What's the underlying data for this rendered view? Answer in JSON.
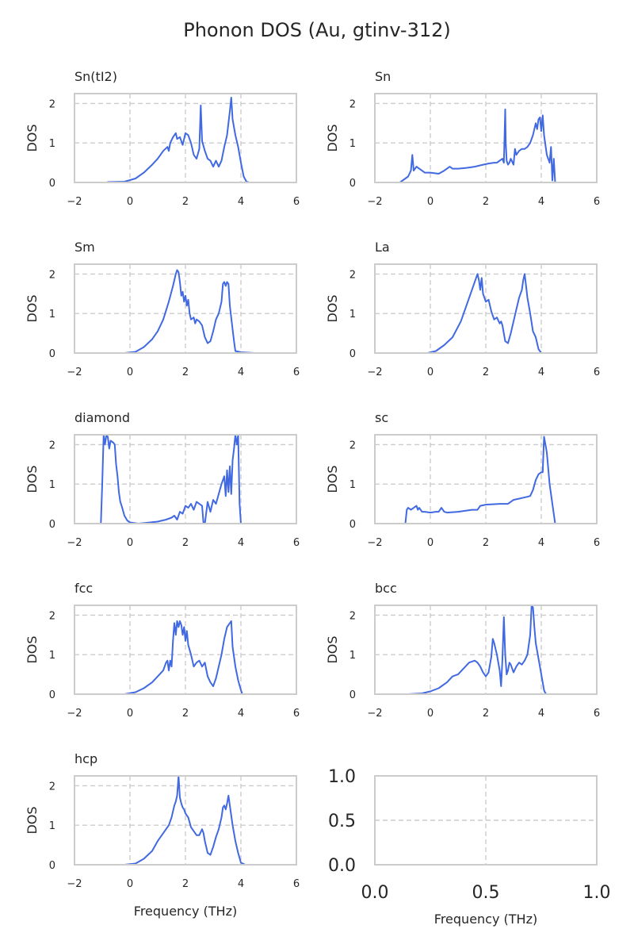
{
  "title": "Phonon DOS (Au, gtinv-312)",
  "colors": {
    "line": "#4169e1",
    "grid": "#cccccc",
    "text": "#262626"
  },
  "chart_data": [
    {
      "type": "line",
      "title": "Sn(tI2)",
      "xlabel": "",
      "ylabel": "DOS",
      "xlim": [
        -2,
        6
      ],
      "ylim": [
        0,
        2.25
      ],
      "xticks": [
        "−2",
        "0",
        "2",
        "4",
        "6"
      ],
      "yticks": [
        "0",
        "1",
        "2"
      ],
      "grid": true,
      "series": [
        {
          "x": [
            -0.8,
            -0.2,
            0.2,
            0.5,
            0.8,
            1.0,
            1.2,
            1.35,
            1.4,
            1.45,
            1.55,
            1.65,
            1.7,
            1.8,
            1.9,
            2.0,
            2.1,
            2.2,
            2.3,
            2.4,
            2.5,
            2.55,
            2.6,
            2.7,
            2.8,
            2.9,
            3.0,
            3.1,
            3.2,
            3.3,
            3.4,
            3.5,
            3.6,
            3.65,
            3.7,
            3.8,
            3.9,
            4.0,
            4.1,
            4.2,
            4.3,
            4.6
          ],
          "y": [
            0.01,
            0.02,
            0.1,
            0.25,
            0.45,
            0.6,
            0.8,
            0.9,
            0.8,
            1.0,
            1.15,
            1.25,
            1.1,
            1.15,
            0.95,
            1.25,
            1.2,
            1.0,
            0.7,
            0.6,
            0.85,
            1.95,
            1.05,
            0.8,
            0.6,
            0.55,
            0.4,
            0.55,
            0.4,
            0.55,
            0.9,
            1.2,
            1.8,
            2.15,
            1.6,
            1.2,
            0.9,
            0.5,
            0.15,
            0.02,
            0.0,
            0.0
          ]
        }
      ]
    },
    {
      "type": "line",
      "title": "Sn",
      "xlabel": "",
      "ylabel": "DOS",
      "xlim": [
        -2,
        6
      ],
      "ylim": [
        0,
        2.25
      ],
      "xticks": [
        "−2",
        "0",
        "2",
        "4",
        "6"
      ],
      "yticks": [
        "0",
        "1",
        "2"
      ],
      "grid": true,
      "series": [
        {
          "x": [
            -1.7,
            -1.1,
            -1.0,
            -0.9,
            -0.8,
            -0.7,
            -0.65,
            -0.6,
            -0.5,
            -0.4,
            -0.3,
            -0.2,
            0.0,
            0.3,
            0.5,
            0.6,
            0.7,
            0.8,
            1.0,
            1.3,
            1.6,
            1.9,
            2.1,
            2.3,
            2.4,
            2.5,
            2.6,
            2.65,
            2.7,
            2.72,
            2.75,
            2.8,
            2.85,
            2.9,
            3.0,
            3.05,
            3.1,
            3.2,
            3.3,
            3.4,
            3.5,
            3.6,
            3.7,
            3.8,
            3.85,
            3.9,
            3.95,
            4.0,
            4.05,
            4.1,
            4.2,
            4.3,
            4.35,
            4.4,
            4.45,
            4.5,
            5.1
          ],
          "y": [
            0.0,
            0.0,
            0.05,
            0.1,
            0.15,
            0.3,
            0.7,
            0.3,
            0.4,
            0.35,
            0.3,
            0.25,
            0.25,
            0.22,
            0.3,
            0.35,
            0.4,
            0.35,
            0.35,
            0.37,
            0.4,
            0.45,
            0.48,
            0.5,
            0.5,
            0.55,
            0.6,
            0.5,
            1.85,
            1.0,
            0.55,
            0.45,
            0.5,
            0.6,
            0.45,
            0.85,
            0.7,
            0.8,
            0.85,
            0.85,
            0.9,
            1.0,
            1.2,
            1.5,
            1.35,
            1.6,
            1.65,
            1.3,
            1.7,
            1.2,
            0.7,
            0.5,
            0.9,
            0.05,
            0.6,
            0.0,
            0.0
          ]
        }
      ]
    },
    {
      "type": "line",
      "title": "Sm",
      "xlabel": "",
      "ylabel": "DOS",
      "xlim": [
        -2,
        6
      ],
      "ylim": [
        0,
        2.25
      ],
      "xticks": [
        "−2",
        "0",
        "2",
        "4",
        "6"
      ],
      "yticks": [
        "0",
        "1",
        "2"
      ],
      "grid": true,
      "series": [
        {
          "x": [
            -0.2,
            0.2,
            0.5,
            0.8,
            1.0,
            1.2,
            1.4,
            1.55,
            1.65,
            1.7,
            1.75,
            1.8,
            1.85,
            1.9,
            1.95,
            2.0,
            2.05,
            2.1,
            2.15,
            2.2,
            2.3,
            2.35,
            2.4,
            2.5,
            2.6,
            2.7,
            2.8,
            2.9,
            3.0,
            3.1,
            3.2,
            3.3,
            3.35,
            3.4,
            3.45,
            3.5,
            3.55,
            3.6,
            3.7,
            3.75,
            3.8,
            4.0,
            4.5
          ],
          "y": [
            0.0,
            0.03,
            0.15,
            0.35,
            0.55,
            0.85,
            1.3,
            1.7,
            2.0,
            2.1,
            2.05,
            1.8,
            1.45,
            1.55,
            1.3,
            1.45,
            1.2,
            1.35,
            1.0,
            0.85,
            0.9,
            0.75,
            0.85,
            0.8,
            0.7,
            0.4,
            0.25,
            0.3,
            0.55,
            0.85,
            1.0,
            1.3,
            1.75,
            1.8,
            1.7,
            1.8,
            1.75,
            1.2,
            0.6,
            0.3,
            0.05,
            0.02,
            0.0
          ]
        }
      ]
    },
    {
      "type": "line",
      "title": "La",
      "xlabel": "",
      "ylabel": "DOS",
      "xlim": [
        -2,
        6
      ],
      "ylim": [
        0,
        2.25
      ],
      "xticks": [
        "−2",
        "0",
        "2",
        "4",
        "6"
      ],
      "yticks": [
        "0",
        "1",
        "2"
      ],
      "grid": true,
      "series": [
        {
          "x": [
            -0.1,
            0.2,
            0.5,
            0.8,
            1.1,
            1.3,
            1.5,
            1.6,
            1.7,
            1.75,
            1.8,
            1.85,
            1.9,
            1.95,
            2.0,
            2.1,
            2.2,
            2.3,
            2.4,
            2.5,
            2.55,
            2.6,
            2.7,
            2.8,
            2.9,
            3.0,
            3.1,
            3.2,
            3.3,
            3.35,
            3.4,
            3.45,
            3.5,
            3.55,
            3.6,
            3.7,
            3.8,
            3.9,
            4.0,
            4.1
          ],
          "y": [
            0.0,
            0.05,
            0.2,
            0.4,
            0.8,
            1.2,
            1.6,
            1.8,
            2.0,
            1.85,
            1.6,
            1.9,
            1.5,
            1.4,
            1.3,
            1.35,
            1.05,
            0.85,
            0.9,
            0.75,
            0.8,
            0.7,
            0.3,
            0.25,
            0.5,
            0.8,
            1.1,
            1.4,
            1.6,
            1.85,
            2.0,
            1.7,
            1.4,
            1.2,
            1.0,
            0.55,
            0.4,
            0.1,
            0.0,
            0.0
          ]
        }
      ]
    },
    {
      "type": "line",
      "title": "diamond",
      "xlabel": "",
      "ylabel": "DOS",
      "xlim": [
        -2,
        6
      ],
      "ylim": [
        0,
        2.25
      ],
      "xticks": [
        "−2",
        "0",
        "2",
        "4",
        "6"
      ],
      "yticks": [
        "0",
        "1",
        "2"
      ],
      "grid": true,
      "series": [
        {
          "x": [
            -1.5,
            -1.05,
            -1.0,
            -0.95,
            -0.9,
            -0.85,
            -0.8,
            -0.75,
            -0.7,
            -0.6,
            -0.55,
            -0.5,
            -0.45,
            -0.4,
            -0.35,
            -0.3,
            -0.2,
            -0.1,
            0.0,
            0.3,
            0.6,
            1.0,
            1.3,
            1.5,
            1.6,
            1.7,
            1.8,
            1.9,
            2.0,
            2.1,
            2.2,
            2.3,
            2.4,
            2.5,
            2.6,
            2.65,
            2.7,
            2.8,
            2.9,
            3.0,
            3.1,
            3.2,
            3.3,
            3.4,
            3.45,
            3.5,
            3.55,
            3.6,
            3.65,
            3.7,
            3.75,
            3.8,
            3.85,
            3.9,
            3.95,
            4.0,
            4.5
          ],
          "y": [
            0.0,
            0.0,
            1.0,
            2.25,
            2.0,
            2.25,
            2.2,
            1.9,
            2.1,
            2.05,
            2.0,
            1.5,
            1.2,
            0.8,
            0.55,
            0.45,
            0.2,
            0.08,
            0.03,
            0.0,
            0.02,
            0.05,
            0.1,
            0.15,
            0.2,
            0.1,
            0.3,
            0.25,
            0.45,
            0.4,
            0.5,
            0.35,
            0.55,
            0.5,
            0.45,
            0.0,
            0.0,
            0.55,
            0.3,
            0.6,
            0.5,
            0.75,
            1.0,
            1.2,
            0.7,
            1.35,
            0.8,
            1.45,
            0.75,
            1.6,
            1.9,
            2.25,
            2.0,
            2.25,
            0.5,
            0.0,
            0.0
          ]
        }
      ]
    },
    {
      "type": "line",
      "title": "sc",
      "xlabel": "",
      "ylabel": "DOS",
      "xlim": [
        -2,
        6
      ],
      "ylim": [
        0,
        2.25
      ],
      "xticks": [
        "−2",
        "0",
        "2",
        "4",
        "6"
      ],
      "yticks": [
        "0",
        "1",
        "2"
      ],
      "grid": true,
      "series": [
        {
          "x": [
            -1.5,
            -0.9,
            -0.85,
            -0.8,
            -0.7,
            -0.6,
            -0.5,
            -0.45,
            -0.4,
            -0.3,
            -0.2,
            0.0,
            0.2,
            0.3,
            0.4,
            0.5,
            0.6,
            1.0,
            1.5,
            1.7,
            1.8,
            2.0,
            2.5,
            2.8,
            3.0,
            3.5,
            3.6,
            3.7,
            3.8,
            3.9,
            4.0,
            4.05,
            4.1,
            4.15,
            4.2,
            4.3,
            4.5,
            4.95
          ],
          "y": [
            0.0,
            0.0,
            0.35,
            0.4,
            0.35,
            0.4,
            0.45,
            0.35,
            0.4,
            0.3,
            0.3,
            0.28,
            0.3,
            0.3,
            0.4,
            0.3,
            0.28,
            0.3,
            0.35,
            0.35,
            0.45,
            0.48,
            0.5,
            0.5,
            0.6,
            0.68,
            0.7,
            0.85,
            1.1,
            1.25,
            1.3,
            1.3,
            2.2,
            2.0,
            1.8,
            1.0,
            0.0,
            0.0
          ]
        }
      ]
    },
    {
      "type": "line",
      "title": "fcc",
      "xlabel": "",
      "ylabel": "DOS",
      "xlim": [
        -2,
        6
      ],
      "ylim": [
        0,
        2.25
      ],
      "xticks": [
        "−2",
        "0",
        "2",
        "4",
        "6"
      ],
      "yticks": [
        "0",
        "1",
        "2"
      ],
      "grid": true,
      "series": [
        {
          "x": [
            -0.2,
            0.2,
            0.5,
            0.8,
            1.0,
            1.2,
            1.3,
            1.35,
            1.4,
            1.45,
            1.5,
            1.55,
            1.6,
            1.65,
            1.7,
            1.75,
            1.8,
            1.85,
            1.9,
            1.95,
            2.0,
            2.05,
            2.1,
            2.2,
            2.3,
            2.4,
            2.5,
            2.6,
            2.7,
            2.8,
            2.9,
            3.0,
            3.1,
            3.2,
            3.3,
            3.4,
            3.5,
            3.6,
            3.65,
            3.7,
            3.8,
            3.9,
            4.0,
            4.05,
            4.2
          ],
          "y": [
            0.0,
            0.05,
            0.15,
            0.3,
            0.45,
            0.6,
            0.8,
            0.85,
            0.6,
            0.85,
            0.7,
            1.35,
            1.8,
            1.5,
            1.85,
            1.7,
            1.85,
            1.75,
            1.5,
            1.7,
            1.35,
            1.6,
            1.25,
            1.0,
            0.7,
            0.8,
            0.85,
            0.7,
            0.8,
            0.45,
            0.3,
            0.2,
            0.4,
            0.7,
            1.0,
            1.4,
            1.7,
            1.8,
            1.85,
            1.2,
            0.7,
            0.35,
            0.1,
            0.0,
            0.0
          ]
        }
      ]
    },
    {
      "type": "line",
      "title": "bcc",
      "xlabel": "",
      "ylabel": "DOS",
      "xlim": [
        -2,
        6
      ],
      "ylim": [
        0,
        2.25
      ],
      "xticks": [
        "−2",
        "0",
        "2",
        "4",
        "6"
      ],
      "yticks": [
        "0",
        "1",
        "2"
      ],
      "grid": true,
      "series": [
        {
          "x": [
            -0.8,
            -0.3,
            0.0,
            0.3,
            0.6,
            0.8,
            1.0,
            1.2,
            1.4,
            1.6,
            1.7,
            1.8,
            1.9,
            2.0,
            2.1,
            2.2,
            2.25,
            2.3,
            2.4,
            2.5,
            2.55,
            2.6,
            2.65,
            2.7,
            2.75,
            2.8,
            2.85,
            2.9,
            3.0,
            3.1,
            3.2,
            3.3,
            3.4,
            3.5,
            3.6,
            3.65,
            3.7,
            3.75,
            3.8,
            3.9,
            4.0,
            4.1,
            4.15,
            4.2,
            4.6
          ],
          "y": [
            0.0,
            0.02,
            0.07,
            0.15,
            0.3,
            0.45,
            0.5,
            0.65,
            0.8,
            0.85,
            0.8,
            0.7,
            0.55,
            0.45,
            0.55,
            0.95,
            1.4,
            1.3,
            1.0,
            0.6,
            0.2,
            0.9,
            1.95,
            1.0,
            0.5,
            0.6,
            0.8,
            0.75,
            0.55,
            0.7,
            0.8,
            0.75,
            0.85,
            1.0,
            1.5,
            2.25,
            2.2,
            1.7,
            1.3,
            0.9,
            0.5,
            0.1,
            0.02,
            0.0,
            0.0
          ]
        }
      ]
    },
    {
      "type": "line",
      "title": "hcp",
      "xlabel": "Frequency (THz)",
      "ylabel": "DOS",
      "xlim": [
        -2,
        6
      ],
      "ylim": [
        0,
        2.25
      ],
      "xticks": [
        "−2",
        "0",
        "2",
        "4",
        "6"
      ],
      "yticks": [
        "0",
        "1",
        "2"
      ],
      "grid": true,
      "series": [
        {
          "x": [
            -0.2,
            0.2,
            0.5,
            0.8,
            1.0,
            1.2,
            1.4,
            1.5,
            1.6,
            1.65,
            1.7,
            1.75,
            1.8,
            1.85,
            1.9,
            1.95,
            2.0,
            2.1,
            2.2,
            2.3,
            2.4,
            2.5,
            2.6,
            2.65,
            2.7,
            2.8,
            2.9,
            3.0,
            3.1,
            3.2,
            3.3,
            3.35,
            3.4,
            3.45,
            3.5,
            3.55,
            3.6,
            3.7,
            3.8,
            3.9,
            4.0,
            4.1,
            4.15,
            4.5
          ],
          "y": [
            0.0,
            0.03,
            0.15,
            0.35,
            0.6,
            0.8,
            1.0,
            1.2,
            1.5,
            1.6,
            1.75,
            2.25,
            1.7,
            1.55,
            1.45,
            1.4,
            1.3,
            1.2,
            0.95,
            0.85,
            0.75,
            0.75,
            0.9,
            0.8,
            0.6,
            0.3,
            0.25,
            0.45,
            0.7,
            0.9,
            1.2,
            1.45,
            1.5,
            1.4,
            1.55,
            1.75,
            1.5,
            1.0,
            0.6,
            0.3,
            0.05,
            0.02,
            0.0,
            0.0
          ]
        }
      ]
    },
    {
      "type": "line",
      "title": "",
      "xlabel": "Frequency (THz)",
      "ylabel": "",
      "xlim": [
        0,
        1
      ],
      "ylim": [
        0,
        1
      ],
      "xticks": [
        "0.0",
        "0.5",
        "1.0"
      ],
      "yticks": [
        "0.0",
        "0.5",
        "1.0"
      ],
      "grid": true,
      "series": []
    }
  ]
}
